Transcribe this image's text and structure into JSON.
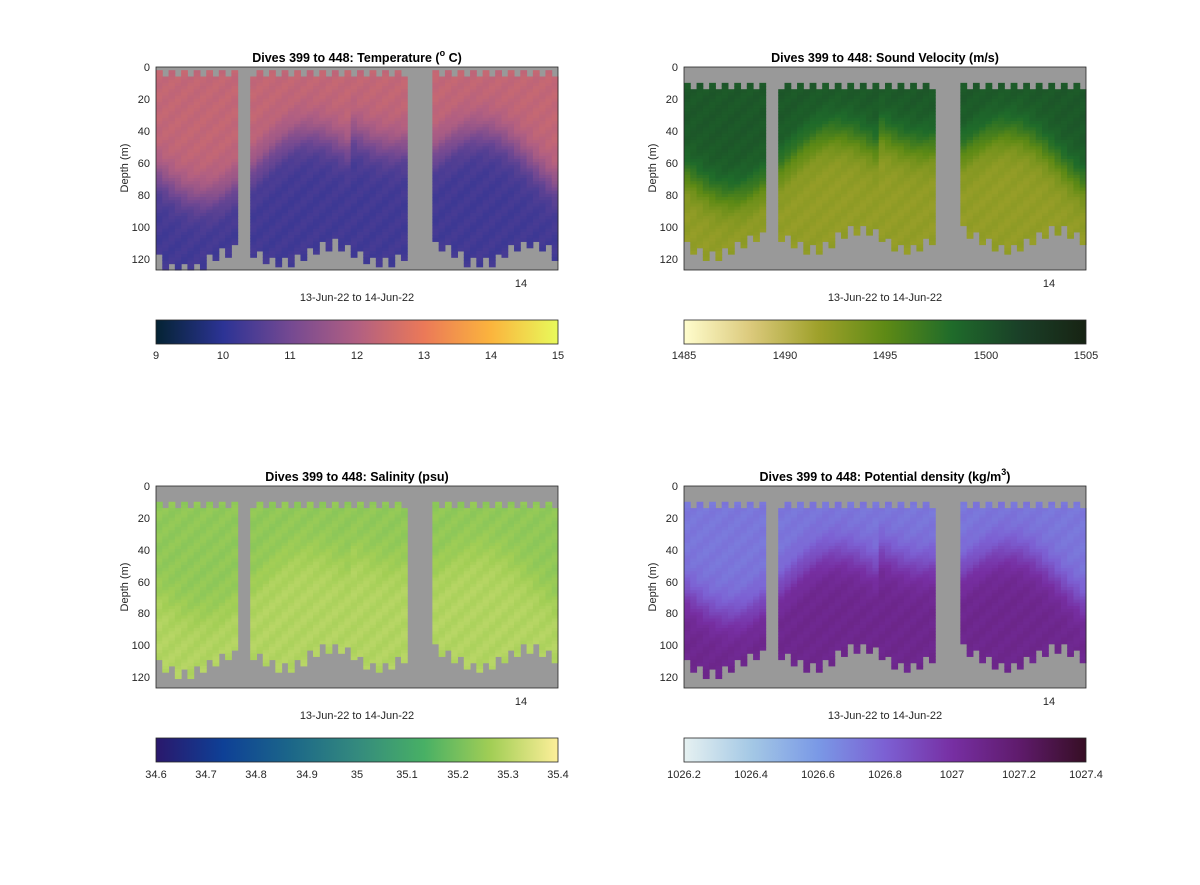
{
  "figure": {
    "background": "#ffffff",
    "missing_color": "#999999"
  },
  "chart_data": [
    {
      "type": "heatmap",
      "title": "Dives 399 to 448: Temperature (",
      "title_sup": "o",
      "title_end": " C)",
      "ylabel": "Depth (m)",
      "xlabel": "13-Jun-22 to 14-Jun-22",
      "x_tick_label": "14",
      "ylim": [
        127,
        0
      ],
      "y_ticks": [
        "0",
        "20",
        "40",
        "60",
        "80",
        "100",
        "120"
      ],
      "cmap_name": "thermal",
      "clim": [
        9,
        15
      ],
      "cbar_ticks": [
        "9",
        "10",
        "11",
        "12",
        "13",
        "14",
        "15"
      ],
      "surface_value": 12.3,
      "deep_value": 10.3,
      "top_start_depth": 2,
      "bottom_base_depth": 114
    },
    {
      "type": "heatmap",
      "title": "Dives 399 to 448: Sound Velocity (m/s)",
      "ylabel": "Depth (m)",
      "xlabel": "13-Jun-22 to 14-Jun-22",
      "x_tick_label": "14",
      "ylim": [
        127,
        0
      ],
      "y_ticks": [
        "0",
        "20",
        "40",
        "60",
        "80",
        "100",
        "120"
      ],
      "cmap_name": "speed",
      "clim": [
        1485,
        1505
      ],
      "cbar_ticks": [
        "1485",
        "1490",
        "1495",
        "1500",
        "1505"
      ],
      "surface_value": 1499.8,
      "deep_value": 1492.3,
      "top_start_depth": 10,
      "bottom_base_depth": 105
    },
    {
      "type": "heatmap",
      "title": "Dives 399 to 448: Salinity (psu)",
      "ylabel": "Depth (m)",
      "xlabel": "13-Jun-22 to 14-Jun-22",
      "x_tick_label": "14",
      "ylim": [
        127,
        0
      ],
      "y_ticks": [
        "0",
        "20",
        "40",
        "60",
        "80",
        "100",
        "120"
      ],
      "cmap_name": "haline",
      "clim": [
        34.6,
        35.4
      ],
      "cbar_ticks": [
        "34.6",
        "34.7",
        "34.8",
        "34.9",
        "35",
        "35.1",
        "35.2",
        "35.3",
        "35.4"
      ],
      "surface_value": 35.24,
      "deep_value": 35.29,
      "top_start_depth": 10,
      "bottom_base_depth": 105
    },
    {
      "type": "heatmap",
      "title": "Dives 399 to 448: Potential density (kg/m",
      "title_sup": "3",
      "title_end": ")",
      "ylabel": "Depth (m)",
      "xlabel": "13-Jun-22 to 14-Jun-22",
      "x_tick_label": "14",
      "ylim": [
        127,
        0
      ],
      "y_ticks": [
        "0",
        "20",
        "40",
        "60",
        "80",
        "100",
        "120"
      ],
      "cmap_name": "dense",
      "clim": [
        1026.2,
        1027.4
      ],
      "cbar_ticks": [
        "1026.2",
        "1026.4",
        "1026.6",
        "1026.8",
        "1027",
        "1027.2",
        "1027.4"
      ],
      "surface_value": 1026.72,
      "deep_value": 1027.08,
      "top_start_depth": 10,
      "bottom_base_depth": 105
    }
  ],
  "colormaps": {
    "thermal": [
      "#042333",
      "#2c3395",
      "#744992",
      "#b15f82",
      "#eb7958",
      "#fbb43d",
      "#e8fa5b"
    ],
    "speed": [
      "#fffdcd",
      "#dbc97b",
      "#9fa12b",
      "#5e8a15",
      "#1f6b2a",
      "#1a4028",
      "#172313"
    ],
    "haline": [
      "#2a186c",
      "#0e4096",
      "#1b6689",
      "#348a7e",
      "#48b065",
      "#a2ce55",
      "#fdef9a"
    ],
    "dense": [
      "#e6f1f1",
      "#a4c8e5",
      "#7a99e6",
      "#7c60d3",
      "#772fa3",
      "#5f1b6c",
      "#360e24"
    ]
  }
}
